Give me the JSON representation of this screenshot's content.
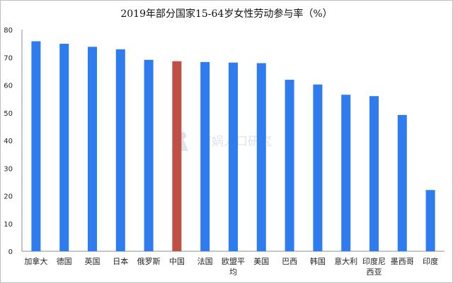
{
  "chart_data": {
    "type": "bar",
    "title": "2019年部分国家15-64岁女性劳动参与率（%）",
    "categories": [
      "加拿大",
      "德国",
      "英国",
      "日本",
      "俄罗斯",
      "中国",
      "法国",
      "欧盟平均",
      "美国",
      "巴西",
      "韩国",
      "意大利",
      "印度尼西亚",
      "墨西哥",
      "印度"
    ],
    "values": [
      75.8,
      74.9,
      73.8,
      72.9,
      69.1,
      68.6,
      68.3,
      68.1,
      67.9,
      61.9,
      60.2,
      56.5,
      56.0,
      49.2,
      22.1
    ],
    "highlight_category": "中国",
    "y_ticks": [
      0,
      10,
      20,
      30,
      40,
      50,
      60,
      70,
      80
    ],
    "ylim": [
      0,
      80
    ],
    "xlabel": "",
    "ylabel": "",
    "grid": false,
    "colors": {
      "bar": "#2f7cf1",
      "highlight": "#bf5046",
      "axis": "#8c8c8c",
      "text": "#222222"
    },
    "watermark": "育娲人口研究"
  }
}
